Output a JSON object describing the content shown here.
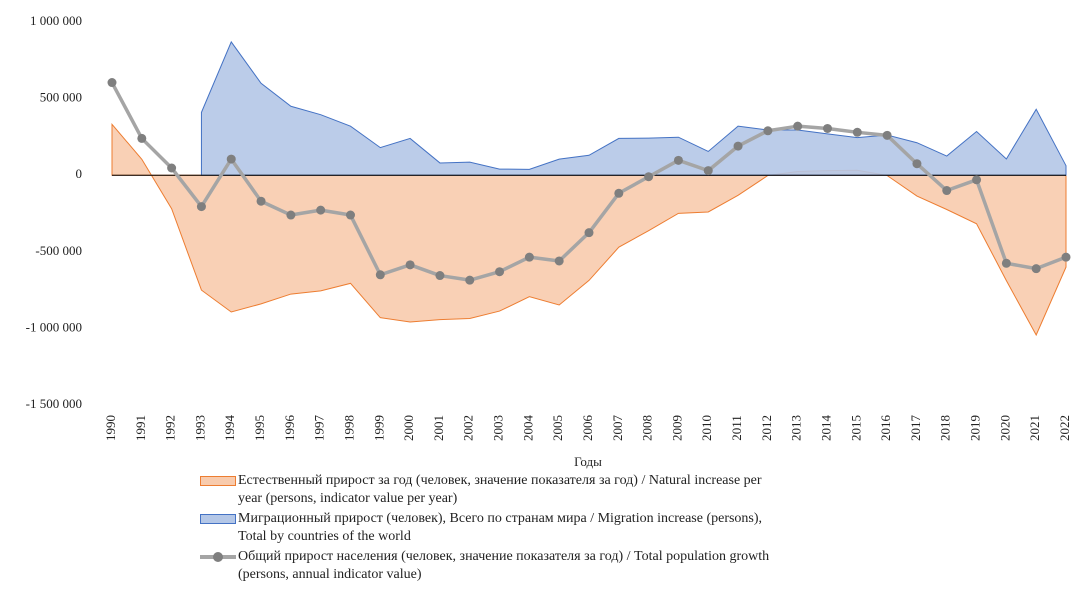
{
  "chart_data": {
    "type": "area_line",
    "x_label": "Годы",
    "categories": [
      "1990",
      "1991",
      "1992",
      "1993",
      "1994",
      "1995",
      "1996",
      "1997",
      "1998",
      "1999",
      "2000",
      "2001",
      "2002",
      "2003",
      "2004",
      "2005",
      "2006",
      "2007",
      "2008",
      "2009",
      "2010",
      "2011",
      "2012",
      "2013",
      "2014",
      "2015",
      "2016",
      "2017",
      "2018",
      "2019",
      "2020",
      "2021",
      "2022"
    ],
    "series": [
      {
        "name": "Естественный прирост за год (человек, значение показателя за год) / Natural increase per year (persons, indicator value per year)",
        "kind": "area",
        "color": "#ed7d31",
        "fill": "#f8cbad",
        "values": [
          332000,
          104000,
          -219000,
          -750000,
          -893000,
          -840000,
          -776000,
          -755000,
          -706000,
          -930000,
          -958000,
          -943000,
          -935000,
          -887000,
          -793000,
          -847000,
          -687000,
          -470000,
          -362000,
          -249000,
          -240000,
          -131000,
          -2000,
          24000,
          30000,
          32000,
          -2000,
          -136000,
          -224000,
          -317000,
          -688000,
          -1043000,
          -600000
        ]
      },
      {
        "name": "Миграционный прирост (человек), Всего по странам мира / Migration increase (persons), Total by countries of the world",
        "kind": "area",
        "color": "#4472c4",
        "fill": "#b4c7e7",
        "values": [
          null,
          null,
          null,
          410000,
          870000,
          600000,
          450000,
          395000,
          320000,
          180000,
          240000,
          80000,
          85000,
          40000,
          38000,
          105000,
          130000,
          240000,
          242000,
          248000,
          155000,
          320000,
          295000,
          295000,
          270000,
          245000,
          262000,
          212000,
          125000,
          285000,
          106000,
          430000,
          62000
        ]
      },
      {
        "name": "Общий прирост населения (человек, значение показателя за год) / Total population growth (persons, annual indicator value)",
        "kind": "line",
        "color": "#a5a5a5",
        "marker_color": "#7f7f7f",
        "values": [
          605000,
          240000,
          47000,
          -205000,
          105000,
          -170000,
          -260000,
          -228000,
          -260000,
          -650000,
          -585000,
          -655000,
          -685000,
          -630000,
          -535000,
          -560000,
          -375000,
          -118000,
          -10000,
          97000,
          30000,
          190000,
          290000,
          320000,
          305000,
          280000,
          260000,
          75000,
          -100000,
          -30000,
          -575000,
          -610000,
          -535000
        ]
      }
    ],
    "ylim": [
      -1500000,
      1000000
    ],
    "yticks": [
      {
        "value": -1500000,
        "label": "-1 500 000"
      },
      {
        "value": -1000000,
        "label": "-1 000 000"
      },
      {
        "value": -500000,
        "label": "-500 000"
      },
      0,
      {
        "value": 500000,
        "label": "500 000"
      },
      {
        "value": 1000000,
        "label": "1 000 000"
      }
    ],
    "grid": false,
    "legend": "bottom"
  }
}
